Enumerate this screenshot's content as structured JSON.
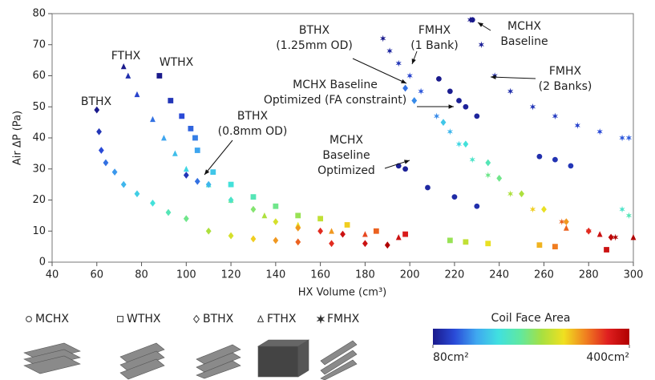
{
  "chart_data": {
    "type": "scatter",
    "x_label": "HX Volume (cm³)",
    "y_label": "Air ΔP (Pa)",
    "xlim": [
      40,
      300
    ],
    "xticks": [
      40,
      60,
      80,
      100,
      120,
      140,
      160,
      180,
      200,
      220,
      240,
      260,
      280,
      300
    ],
    "ylim": [
      0,
      80
    ],
    "yticks": [
      0,
      10,
      20,
      30,
      40,
      50,
      60,
      70,
      80
    ],
    "colormap": [
      "#1a1a8c",
      "#2a4bd8",
      "#3fa8f0",
      "#40e0e0",
      "#60e8a0",
      "#a8e040",
      "#f0e020",
      "#f08020",
      "#e02020",
      "#b00000"
    ],
    "color_label": "Coil Face Area",
    "clim": [
      80,
      400
    ],
    "cticks": [
      {
        "value": 80,
        "label": "80cm²"
      },
      {
        "value": 400,
        "label": "400cm²"
      }
    ],
    "legend": [
      {
        "name": "MCHX",
        "marker": "circle"
      },
      {
        "name": "WTHX",
        "marker": "square"
      },
      {
        "name": "BTHX",
        "marker": "diamond"
      },
      {
        "name": "FTHX",
        "marker": "triangle"
      },
      {
        "name": "FMHX",
        "marker": "star"
      }
    ],
    "annotations": [
      {
        "lines": [
          "BTHX"
        ]
      },
      {
        "lines": [
          "FTHX"
        ]
      },
      {
        "lines": [
          "WTHX"
        ]
      },
      {
        "lines": [
          "BTHX",
          "(0.8mm OD)"
        ]
      },
      {
        "lines": [
          "BTHX",
          "(1.25mm OD)"
        ]
      },
      {
        "lines": [
          "FMHX",
          "(1 Bank)"
        ]
      },
      {
        "lines": [
          "MCHX",
          "Baseline"
        ]
      },
      {
        "lines": [
          "FMHX",
          "(2 Banks)"
        ]
      },
      {
        "lines": [
          "MCHX Baseline",
          "Optimized (FA constraint)"
        ]
      },
      {
        "lines": [
          "MCHX",
          "Baseline",
          "Optimized"
        ]
      }
    ],
    "series": [
      {
        "marker": "diamond",
        "x": [
          60,
          61,
          62,
          64,
          68,
          72,
          78,
          85,
          92,
          100,
          110,
          120,
          130,
          140,
          150,
          165,
          180,
          190
        ],
        "values": [
          49,
          42,
          36,
          32,
          29,
          25,
          22,
          19,
          16,
          14,
          10,
          8.5,
          7.5,
          7,
          6.5,
          6,
          6,
          5.5
        ],
        "face_area": [
          80,
          100,
          115,
          130,
          145,
          160,
          175,
          190,
          210,
          230,
          260,
          280,
          300,
          320,
          340,
          360,
          380,
          400
        ]
      },
      {
        "marker": "triangle",
        "x": [
          72,
          74,
          78,
          85,
          90,
          95,
          100,
          110,
          120,
          135,
          150,
          165,
          180,
          195
        ],
        "values": [
          63,
          60,
          54,
          46,
          40,
          35,
          30,
          25,
          20,
          15,
          12,
          10,
          9,
          8
        ],
        "face_area": [
          80,
          95,
          110,
          130,
          150,
          165,
          180,
          200,
          230,
          260,
          290,
          320,
          350,
          380
        ]
      },
      {
        "marker": "square",
        "x": [
          88,
          93,
          98,
          102,
          104,
          105,
          112,
          120,
          130,
          140,
          150,
          160,
          172,
          185,
          198
        ],
        "values": [
          60,
          52,
          47,
          43,
          40,
          36,
          29,
          25,
          21,
          18,
          15,
          14,
          12,
          10,
          9
        ],
        "face_area": [
          80,
          100,
          115,
          125,
          135,
          150,
          170,
          190,
          210,
          230,
          250,
          270,
          300,
          340,
          370
        ]
      },
      {
        "marker": "diamond",
        "x": [
          100,
          105,
          110,
          120,
          130,
          140,
          150,
          160,
          170
        ],
        "values": [
          28,
          26,
          25,
          20,
          17,
          13,
          11,
          10,
          9
        ],
        "face_area": [
          100,
          130,
          160,
          200,
          240,
          280,
          320,
          360,
          380
        ]
      },
      {
        "marker": "star",
        "x": [
          188,
          191,
          195,
          200,
          205,
          212,
          218,
          222,
          228,
          235,
          245,
          255,
          268,
          280,
          292
        ],
        "values": [
          72,
          68,
          64,
          60,
          55,
          47,
          42,
          38,
          33,
          28,
          22,
          17,
          13,
          10,
          8
        ],
        "face_area": [
          80,
          90,
          100,
          110,
          120,
          140,
          160,
          180,
          200,
          230,
          260,
          300,
          340,
          370,
          400
        ]
      },
      {
        "marker": "diamond",
        "x": [
          198,
          202,
          215,
          225,
          235,
          240,
          250,
          260,
          270,
          280,
          290
        ],
        "values": [
          56,
          52,
          45,
          38,
          32,
          27,
          22,
          17,
          13,
          10,
          8
        ],
        "face_area": [
          130,
          140,
          170,
          190,
          210,
          230,
          260,
          290,
          320,
          360,
          390
        ]
      },
      {
        "marker": "star",
        "x": [
          227,
          232,
          238,
          245,
          255,
          265,
          275,
          285,
          295,
          298,
          295,
          298
        ],
        "values": [
          78,
          70,
          60,
          55,
          50,
          47,
          44,
          42,
          40,
          40,
          17,
          15
        ],
        "face_area": [
          80,
          85,
          90,
          95,
          100,
          105,
          110,
          115,
          120,
          122,
          200,
          210
        ]
      },
      {
        "marker": "circle",
        "x": [
          228,
          213,
          218,
          222,
          225,
          230,
          195,
          198,
          208,
          220,
          230,
          258,
          265,
          272
        ],
        "values": [
          78,
          59,
          55,
          52,
          50,
          47,
          31,
          30,
          24,
          21,
          18,
          34,
          33,
          31
        ],
        "face_area": [
          80,
          80,
          82,
          84,
          86,
          88,
          85,
          85,
          90,
          92,
          95,
          95,
          98,
          100
        ]
      },
      {
        "marker": "square",
        "x": [
          218,
          225,
          235,
          258,
          265,
          288
        ],
        "values": [
          7,
          6.5,
          6,
          5.5,
          5,
          4
        ],
        "face_area": [
          250,
          270,
          290,
          310,
          330,
          380
        ]
      },
      {
        "marker": "triangle",
        "x": [
          270,
          285,
          300
        ],
        "values": [
          11,
          9,
          8
        ],
        "face_area": [
          340,
          380,
          400
        ]
      }
    ]
  }
}
